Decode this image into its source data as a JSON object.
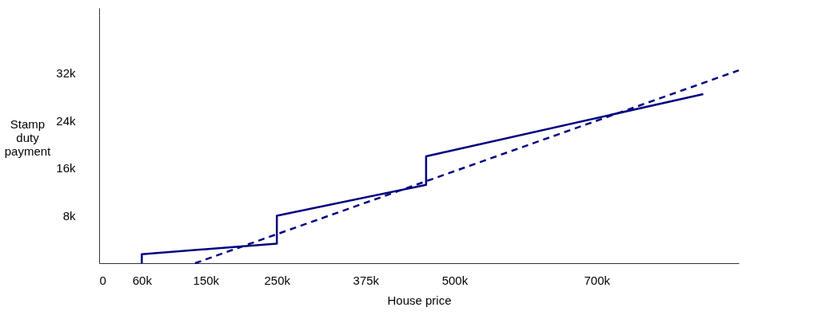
{
  "chart_data": {
    "type": "line",
    "xlabel": "House price",
    "ylabel": "Stamp duty payment",
    "xlim": [
      0,
      900000
    ],
    "ylim": [
      0,
      43000
    ],
    "xticks": [
      0,
      {
        "value": 60000,
        "label": "60k"
      },
      {
        "value": 150000,
        "label": "150k"
      },
      {
        "value": 250000,
        "label": "250k"
      },
      {
        "value": 375000,
        "label": "375k"
      },
      {
        "value": 500000,
        "label": "500k"
      },
      {
        "value": 700000,
        "label": "700k"
      }
    ],
    "yticks": [
      {
        "value": 8000,
        "label": "8k"
      },
      {
        "value": 16000,
        "label": "16k"
      },
      {
        "value": 24000,
        "label": "24k"
      },
      {
        "value": 32000,
        "label": "32k"
      }
    ],
    "grid": false,
    "marker": "none",
    "series": [
      {
        "color": "#000080",
        "line_style": "solid",
        "x": [
          60000,
          60000,
          250000,
          250000,
          460000,
          460000,
          850000
        ],
        "values": [
          0,
          1500,
          3300,
          8000,
          13200,
          18000,
          28500
        ]
      },
      {
        "color": "#000080",
        "line_style": "dashed",
        "x": [
          135000,
          900000
        ],
        "values": [
          0,
          32500
        ]
      }
    ]
  }
}
